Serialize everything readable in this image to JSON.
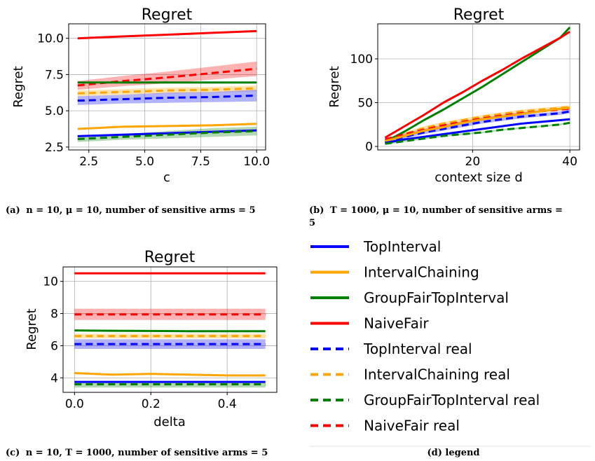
{
  "colors": {
    "TopInterval": "#0000ff",
    "IntervalChaining": "#ffa500",
    "GroupFairTopInterval": "#008000",
    "NaiveFair": "#ff0000"
  },
  "captions": {
    "a_mid": "n = 10, μ = 10, number of sensitive arms = 5",
    "b_line1": "T = 1000, μ = 10, number of sensitive arms =",
    "b_line2": "5",
    "c_mid": "n = 10, T = 1000, number of sensitive arms = 5",
    "d": "(d) legend"
  },
  "legend": [
    {
      "label": "TopInterval",
      "color": "#0000ff",
      "dash": false
    },
    {
      "label": "IntervalChaining",
      "color": "#ffa500",
      "dash": false
    },
    {
      "label": "GroupFairTopInterval",
      "color": "#008000",
      "dash": false
    },
    {
      "label": "NaiveFair",
      "color": "#ff0000",
      "dash": false
    },
    {
      "label": "TopInterval real",
      "color": "#0000ff",
      "dash": true
    },
    {
      "label": "IntervalChaining real",
      "color": "#ffa500",
      "dash": true
    },
    {
      "label": "GroupFairTopInterval real",
      "color": "#008000",
      "dash": true
    },
    {
      "label": "NaiveFair real",
      "color": "#ff0000",
      "dash": true
    }
  ],
  "chart_data": [
    {
      "id": "a",
      "type": "line",
      "title": "Regret",
      "xlabel": "c",
      "ylabel": "Regret",
      "caption_prefix": "(a)",
      "xlim": [
        1.6,
        10.4
      ],
      "ylim": [
        2.3,
        11.0
      ],
      "xticks": [
        2.5,
        5.0,
        7.5,
        10.0
      ],
      "xtick_labels": [
        "2.5",
        "5.0",
        "7.5",
        "10.0"
      ],
      "yticks": [
        2.5,
        5.0,
        7.5,
        10.0
      ],
      "ytick_labels": [
        "2.5",
        "5.0",
        "7.5",
        "10.0"
      ],
      "grid": true,
      "x": [
        2,
        4,
        6,
        8,
        10
      ],
      "series": [
        {
          "key": "NaiveFair",
          "dash": false,
          "values": [
            10.0,
            10.13,
            10.25,
            10.38,
            10.5
          ]
        },
        {
          "key": "NaiveFair",
          "dash": true,
          "values": [
            6.75,
            7.05,
            7.3,
            7.6,
            7.9
          ],
          "band": [
            0.3,
            0.35,
            0.4,
            0.45,
            0.5
          ]
        },
        {
          "key": "GroupFairTopInterval",
          "dash": false,
          "values": [
            6.95,
            6.95,
            6.95,
            6.95,
            6.95
          ]
        },
        {
          "key": "IntervalChaining",
          "dash": true,
          "values": [
            6.2,
            6.3,
            6.4,
            6.45,
            6.55
          ],
          "band": [
            0.2,
            0.2,
            0.2,
            0.2,
            0.2
          ]
        },
        {
          "key": "TopInterval",
          "dash": true,
          "values": [
            5.7,
            5.8,
            5.9,
            5.95,
            6.05
          ],
          "band": [
            0.3,
            0.3,
            0.35,
            0.35,
            0.4
          ]
        },
        {
          "key": "IntervalChaining",
          "dash": false,
          "values": [
            3.75,
            3.9,
            3.95,
            4.0,
            4.1
          ]
        },
        {
          "key": "TopInterval",
          "dash": false,
          "values": [
            3.25,
            3.35,
            3.45,
            3.55,
            3.65
          ]
        },
        {
          "key": "GroupFairTopInterval",
          "dash": true,
          "values": [
            3.05,
            3.2,
            3.35,
            3.5,
            3.6
          ],
          "band": [
            0.2,
            0.2,
            0.25,
            0.3,
            0.3
          ]
        }
      ]
    },
    {
      "id": "b",
      "type": "line",
      "title": "Regret",
      "xlabel": "context size d",
      "ylabel": "Regret",
      "caption_prefix": "(b)",
      "xlim": [
        0.5,
        42.0
      ],
      "ylim": [
        -4,
        140
      ],
      "xticks": [
        20,
        40
      ],
      "xtick_labels": [
        "20",
        "40"
      ],
      "yticks": [
        0,
        50,
        100
      ],
      "ytick_labels": [
        "0",
        "50",
        "100"
      ],
      "grid": true,
      "x": [
        2,
        6,
        10,
        14,
        18,
        22,
        26,
        30,
        34,
        38,
        40
      ],
      "series": [
        {
          "key": "GroupFairTopInterval",
          "dash": false,
          "values": [
            5,
            17,
            30,
            42,
            55,
            68,
            82,
            96,
            110,
            124,
            136
          ]
        },
        {
          "key": "NaiveFair",
          "dash": false,
          "values": [
            10,
            23,
            36,
            50,
            62,
            75,
            87,
            100,
            112,
            124,
            131
          ]
        },
        {
          "key": "IntervalChaining",
          "dash": true,
          "values": [
            7,
            14,
            21,
            26,
            30,
            34,
            37,
            40,
            42,
            44,
            45
          ],
          "band": [
            2,
            2,
            2,
            2,
            2,
            2,
            2,
            2,
            2,
            2,
            2
          ]
        },
        {
          "key": "NaiveFair",
          "dash": true,
          "values": [
            8,
            14,
            19,
            24,
            28,
            32,
            35,
            38,
            40,
            42,
            43
          ],
          "band": [
            1,
            1,
            1,
            1,
            1,
            1,
            1,
            1,
            1,
            1,
            1
          ]
        },
        {
          "key": "TopInterval",
          "dash": true,
          "values": [
            5,
            11,
            16,
            20,
            24,
            28,
            31,
            34,
            36,
            38,
            40
          ],
          "band": [
            2,
            2,
            2,
            2,
            2,
            2,
            2,
            2,
            2,
            2,
            2
          ]
        },
        {
          "key": "IntervalChaining",
          "dash": false,
          "values": [
            6,
            12,
            18,
            22,
            27,
            31,
            34,
            37,
            40,
            43,
            44
          ]
        },
        {
          "key": "TopInterval",
          "dash": false,
          "values": [
            4,
            8,
            11,
            14,
            17,
            20,
            23,
            26,
            28,
            30,
            31
          ]
        },
        {
          "key": "GroupFairTopInterval",
          "dash": true,
          "values": [
            3,
            6,
            9,
            12,
            14,
            16,
            19,
            21,
            23,
            25,
            27
          ],
          "band": [
            1,
            1,
            1,
            1,
            1,
            1,
            1,
            1,
            1,
            1,
            1
          ]
        }
      ]
    },
    {
      "id": "c",
      "type": "line",
      "title": "Regret",
      "xlabel": "delta",
      "ylabel": "Regret",
      "caption_prefix": "(c)",
      "xlim": [
        -0.03,
        0.53
      ],
      "ylim": [
        3.1,
        10.9
      ],
      "xticks": [
        0.0,
        0.2,
        0.4
      ],
      "xtick_labels": [
        "0.0",
        "0.2",
        "0.4"
      ],
      "yticks": [
        4,
        6,
        8,
        10
      ],
      "ytick_labels": [
        "4",
        "6",
        "8",
        "10"
      ],
      "grid": true,
      "x": [
        0.0,
        0.1,
        0.2,
        0.3,
        0.4,
        0.5
      ],
      "series": [
        {
          "key": "NaiveFair",
          "dash": false,
          "values": [
            10.5,
            10.5,
            10.5,
            10.5,
            10.5,
            10.5
          ]
        },
        {
          "key": "NaiveFair",
          "dash": true,
          "values": [
            7.95,
            7.95,
            7.95,
            7.95,
            7.95,
            7.95
          ],
          "band": [
            0.35,
            0.35,
            0.35,
            0.35,
            0.35,
            0.35
          ]
        },
        {
          "key": "GroupFairTopInterval",
          "dash": false,
          "values": [
            6.95,
            6.93,
            6.92,
            6.9,
            6.9,
            6.9
          ]
        },
        {
          "key": "IntervalChaining",
          "dash": true,
          "values": [
            6.6,
            6.6,
            6.6,
            6.6,
            6.6,
            6.6
          ],
          "band": [
            0.15,
            0.15,
            0.15,
            0.15,
            0.15,
            0.15
          ]
        },
        {
          "key": "TopInterval",
          "dash": true,
          "values": [
            6.1,
            6.1,
            6.1,
            6.1,
            6.1,
            6.1
          ],
          "band": [
            0.3,
            0.3,
            0.3,
            0.3,
            0.3,
            0.3
          ]
        },
        {
          "key": "IntervalChaining",
          "dash": false,
          "values": [
            4.3,
            4.2,
            4.25,
            4.2,
            4.15,
            4.15
          ]
        },
        {
          "key": "TopInterval",
          "dash": false,
          "values": [
            3.75,
            3.75,
            3.75,
            3.75,
            3.75,
            3.75
          ]
        },
        {
          "key": "GroupFairTopInterval",
          "dash": true,
          "values": [
            3.6,
            3.6,
            3.6,
            3.6,
            3.6,
            3.6
          ],
          "band": [
            0.2,
            0.2,
            0.2,
            0.2,
            0.2,
            0.2
          ]
        }
      ]
    }
  ]
}
